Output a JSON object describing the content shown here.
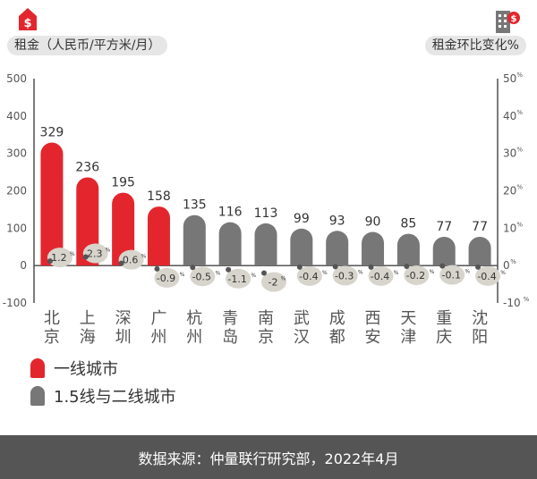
{
  "header": {
    "left_label": "租金（人民币/平方米/月）",
    "right_label": "租金环比变化%",
    "left_icon": "house-dollar-icon",
    "right_icon": "building-dollar-icon"
  },
  "legend": [
    {
      "label": "一线城市",
      "color": "#e3262d"
    },
    {
      "label": "1.5线与二线城市",
      "color": "#777777"
    }
  ],
  "footer": {
    "source": "数据来源：仲量联行研究部，2022年4月"
  },
  "colors": {
    "tier1": "#e3262d",
    "tier2": "#777777",
    "bubble": "#d7d4cc",
    "axis": "#444444",
    "footer_bg": "#555555"
  },
  "chart_data": {
    "type": "bar",
    "categories": [
      "北京",
      "上海",
      "深圳",
      "广州",
      "杭州",
      "青岛",
      "南京",
      "武汉",
      "成都",
      "西安",
      "天津",
      "重庆",
      "沈阳"
    ],
    "category_labels": [
      [
        "北",
        "京"
      ],
      [
        "上",
        "海"
      ],
      [
        "深",
        "圳"
      ],
      [
        "广",
        "州"
      ],
      [
        "杭",
        "州"
      ],
      [
        "青",
        "岛"
      ],
      [
        "南",
        "京"
      ],
      [
        "武",
        "汉"
      ],
      [
        "成",
        "都"
      ],
      [
        "西",
        "安"
      ],
      [
        "天",
        "津"
      ],
      [
        "重",
        "庆"
      ],
      [
        "沈",
        "阳"
      ]
    ],
    "series": [
      {
        "name": "租金（人民币/平方米/月）",
        "axis": "left",
        "values": [
          329,
          236,
          195,
          158,
          135,
          116,
          113,
          99,
          93,
          90,
          85,
          77,
          77
        ]
      },
      {
        "name": "租金环比变化%",
        "axis": "right",
        "values": [
          1.2,
          2.3,
          0.6,
          -0.9,
          -0.5,
          -1.1,
          -2.0,
          -0.4,
          -0.3,
          -0.4,
          -0.2,
          -0.1,
          -0.4
        ]
      }
    ],
    "tier": [
      "一线城市",
      "一线城市",
      "一线城市",
      "一线城市",
      "1.5线与二线城市",
      "1.5线与二线城市",
      "1.5线与二线城市",
      "1.5线与二线城市",
      "1.5线与二线城市",
      "1.5线与二线城市",
      "1.5线与二线城市",
      "1.5线与二线城市",
      "1.5线与二线城市"
    ],
    "ylim_left": [
      -100,
      500
    ],
    "yticks_left": [
      -100,
      0,
      100,
      200,
      300,
      400,
      500
    ],
    "ylim_right": [
      -10,
      50
    ],
    "yticks_right": [
      -10,
      0,
      10,
      20,
      30,
      40,
      50
    ],
    "legend_position": "bottom-left",
    "grid": false
  }
}
